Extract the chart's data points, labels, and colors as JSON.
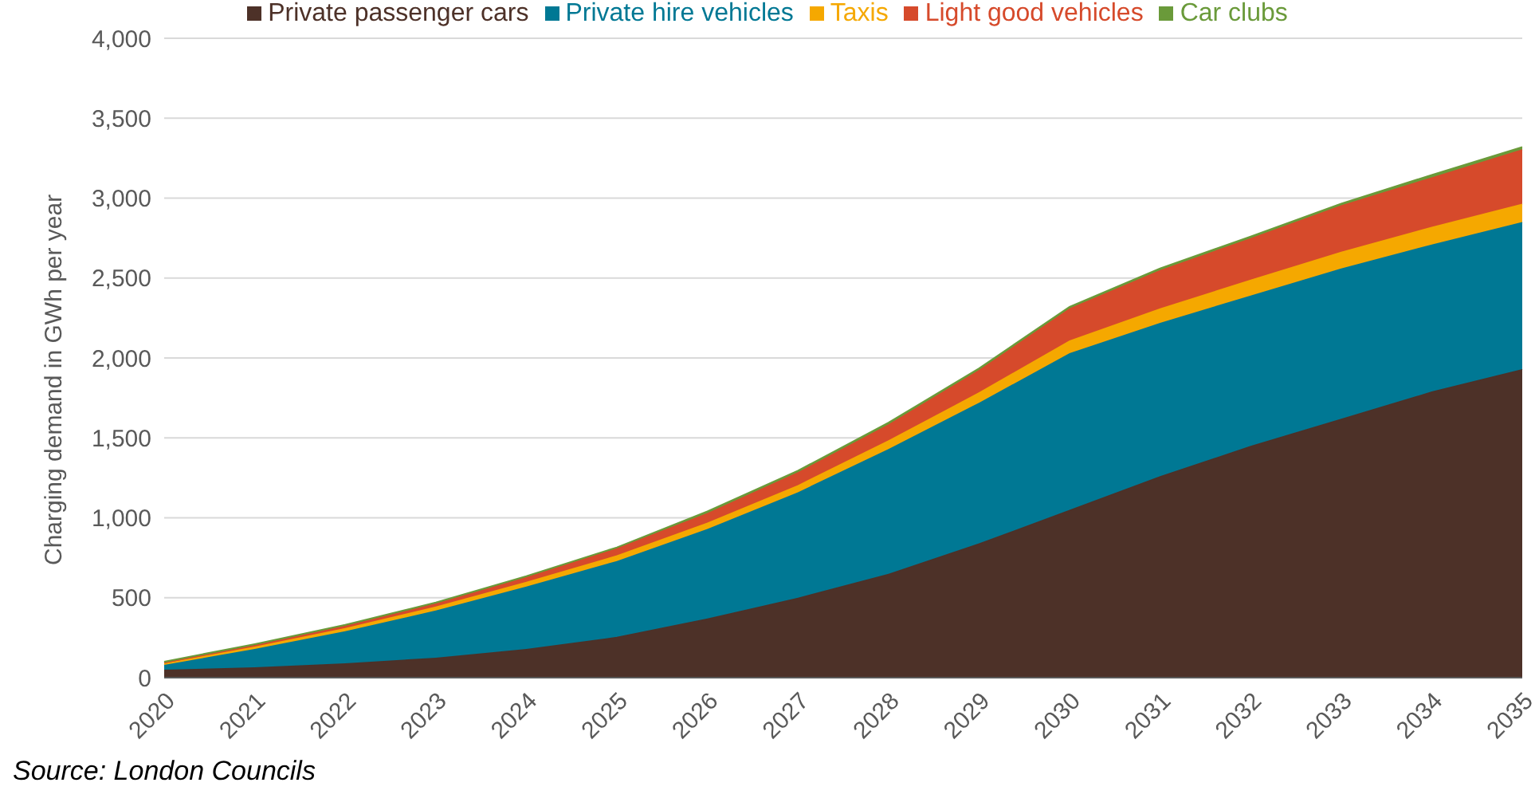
{
  "chart_data": {
    "type": "area",
    "stacked": true,
    "ylabel": "Charging demand in GWh per year",
    "annotations": [
      "Source: London Councils"
    ],
    "categories": [
      "2020",
      "2021",
      "2022",
      "2023",
      "2024",
      "2025",
      "2026",
      "2027",
      "2028",
      "2029",
      "2030",
      "2031",
      "2032",
      "2033",
      "2034",
      "2035"
    ],
    "ylim": [
      0,
      4000
    ],
    "yticks": [
      {
        "value": 0,
        "label": "0"
      },
      {
        "value": 500,
        "label": "500"
      },
      {
        "value": 1000,
        "label": "1,000"
      },
      {
        "value": 1500,
        "label": "1,500"
      },
      {
        "value": 2000,
        "label": "2,000"
      },
      {
        "value": 2500,
        "label": "2,500"
      },
      {
        "value": 3000,
        "label": "3,000"
      },
      {
        "value": 3500,
        "label": "3,500"
      },
      {
        "value": 4000,
        "label": "4,000"
      }
    ],
    "grid": "y",
    "legend": "top",
    "series": [
      {
        "name": "Private passenger cars",
        "color": "#4d3128",
        "values": [
          50,
          65,
          90,
          125,
          180,
          255,
          370,
          500,
          650,
          840,
          1050,
          1260,
          1450,
          1620,
          1790,
          1930
        ]
      },
      {
        "name": "Private hire vehicles",
        "color": "#007894",
        "values": [
          30,
          115,
          200,
          295,
          390,
          475,
          560,
          660,
          780,
          880,
          980,
          960,
          940,
          940,
          920,
          920
        ]
      },
      {
        "name": "Taxis",
        "color": "#f5a800",
        "values": [
          10,
          15,
          20,
          25,
          30,
          35,
          40,
          45,
          55,
          65,
          80,
          90,
          100,
          105,
          110,
          115
        ]
      },
      {
        "name": "Light good vehicles",
        "color": "#d64a2b",
        "values": [
          5,
          10,
          15,
          20,
          30,
          45,
          60,
          80,
          100,
          140,
          200,
          240,
          260,
          290,
          310,
          340
        ]
      },
      {
        "name": "Car clubs",
        "color": "#6a9a3a",
        "values": [
          5,
          5,
          5,
          5,
          5,
          5,
          10,
          10,
          10,
          10,
          10,
          10,
          10,
          10,
          15,
          15
        ]
      }
    ]
  }
}
